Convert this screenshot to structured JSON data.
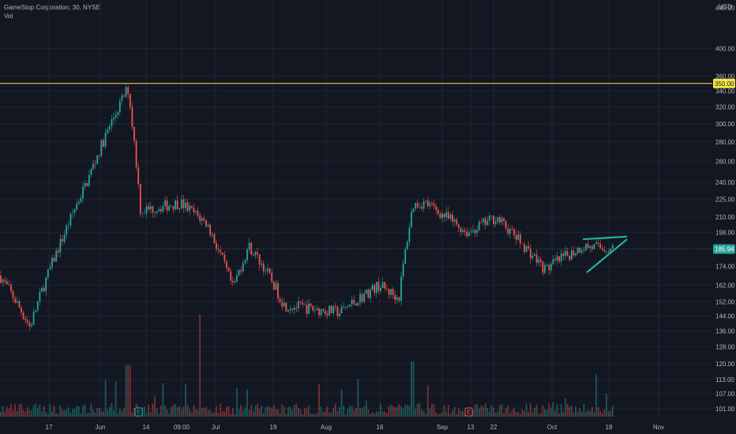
{
  "legend": {
    "symbol_line": "GameStop Corporation, 30, NYSE",
    "volume_label": "Vol"
  },
  "currency": "USD",
  "colors": {
    "background": "#131722",
    "up": "#26a69a",
    "down": "#ef5350",
    "grid": "#1f2433",
    "horizontal_line": "#f5e642",
    "pattern": "#1fb5a0",
    "text": "#b2b5be"
  },
  "chart_data": {
    "type": "candlestick",
    "title": "GameStop Corporation, 30, NYSE",
    "y_scale": "log",
    "ylim": [
      98,
      470
    ],
    "y_ticks": [
      "400.00",
      "360.00",
      "340.00",
      "320.00",
      "300.00",
      "280.00",
      "260.00",
      "240.00",
      "225.00",
      "210.00",
      "198.00",
      "174.00",
      "162.00",
      "152.00",
      "144.00",
      "136.00",
      "128.00",
      "120.00",
      "113.00",
      "107.00",
      "101.00"
    ],
    "top_tick_partial": "440.00",
    "x_ticks": [
      "17",
      "Jun",
      "14",
      "09:00",
      "Jul",
      "19",
      "Aug",
      "16",
      "Sep",
      "13",
      "22",
      "Oct",
      "18",
      "Nov"
    ],
    "price_anchors": [
      {
        "x": "start",
        "close": 168
      },
      {
        "x": "17",
        "close": 138
      },
      {
        "x": "late May",
        "close": 195
      },
      {
        "x": "Jun",
        "close": 240
      },
      {
        "x": "early Jun",
        "close": 275
      },
      {
        "x": "Jun peak",
        "close": 344
      },
      {
        "x": "14",
        "close": 215
      },
      {
        "x": "09:00",
        "close": 222
      },
      {
        "x": "Jul",
        "close": 205
      },
      {
        "x": "Jul low",
        "close": 160
      },
      {
        "x": "Jul mid",
        "close": 188
      },
      {
        "x": "19",
        "close": 172
      },
      {
        "x": "Aug",
        "close": 150
      },
      {
        "x": "Aug low",
        "close": 146
      },
      {
        "x": "16",
        "close": 162
      },
      {
        "x": "late Aug",
        "close": 154
      },
      {
        "x": "Aug spike",
        "close": 220
      },
      {
        "x": "Sep",
        "close": 222
      },
      {
        "x": "13",
        "close": 198
      },
      {
        "x": "22",
        "close": 210
      },
      {
        "x": "Oct",
        "close": 172
      },
      {
        "x": "Oct 10",
        "close": 188
      },
      {
        "x": "18",
        "close": 185.94
      }
    ],
    "last_price": "185.94",
    "horizontal_level": "350.00",
    "annotations": [
      {
        "type": "symmetrical-triangle",
        "description": "converging trendlines drawn near Oct–18"
      },
      {
        "type": "event-badge",
        "label": "E",
        "x": "14"
      },
      {
        "type": "event-badge",
        "label": "E",
        "x": "13"
      }
    ],
    "volume_series": "Vol"
  },
  "badges": {
    "earnings_1": "E",
    "earnings_2": "E"
  }
}
